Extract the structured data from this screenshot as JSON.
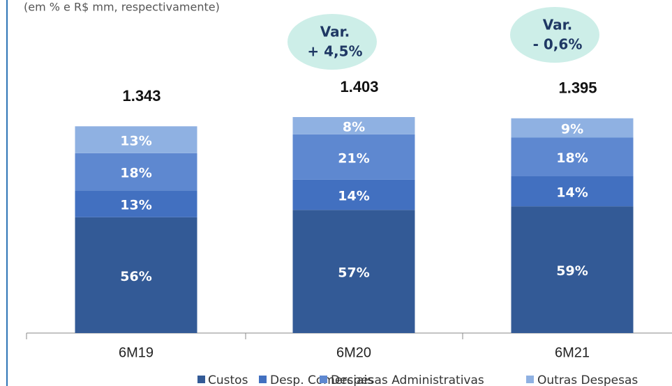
{
  "chart_data": {
    "type": "stacked-bar",
    "subtitle": "(em % e R$ mm, respectivamente)",
    "categories": [
      "6M19",
      "6M20",
      "6M21"
    ],
    "series": [
      {
        "name": "Custos",
        "color": "#335a96",
        "values": [
          56,
          57,
          59
        ]
      },
      {
        "name": "Desp. Comerciais",
        "color": "#4270c0",
        "values": [
          13,
          14,
          14
        ]
      },
      {
        "name": "Despesas Administrativas",
        "color": "#5e88d0",
        "values": [
          18,
          21,
          18
        ]
      },
      {
        "name": "Outras Despesas",
        "color": "#8fb1e2",
        "values": [
          13,
          8,
          9
        ]
      }
    ],
    "totals": {
      "values": [
        1343,
        1403,
        1395
      ],
      "value_labels": [
        "1.343",
        "1.403",
        "1.395"
      ]
    },
    "annotations": [
      {
        "lines": [
          "Var.",
          "+ 4,5%"
        ]
      },
      {
        "lines": [
          "Var.",
          "- 0,6%"
        ]
      }
    ]
  }
}
